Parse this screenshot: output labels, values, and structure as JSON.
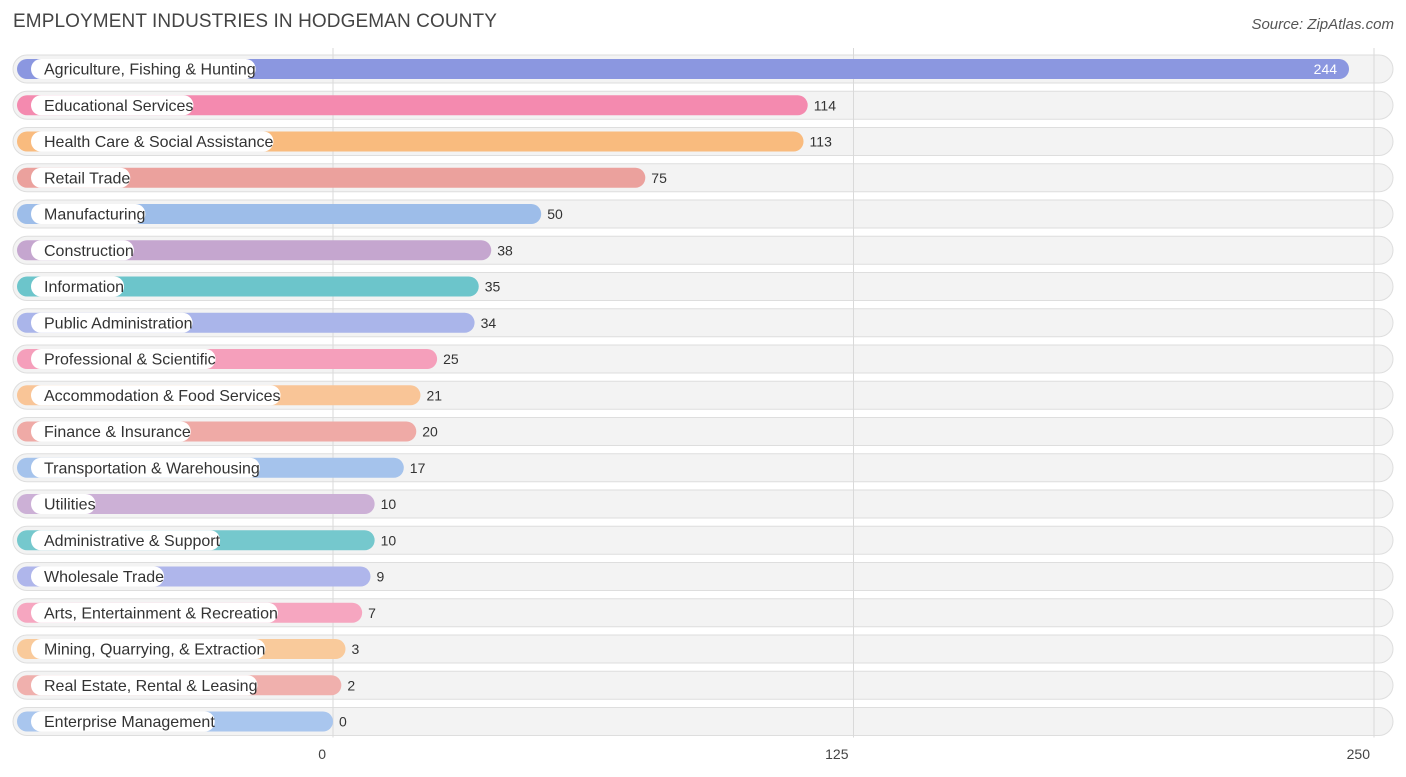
{
  "title": "EMPLOYMENT INDUSTRIES IN HODGEMAN COUNTY",
  "source": "Source: ZipAtlas.com",
  "chart_data": {
    "type": "bar",
    "orientation": "horizontal",
    "title": "EMPLOYMENT INDUSTRIES IN HODGEMAN COUNTY",
    "categories": [
      "Agriculture, Fishing & Hunting",
      "Educational Services",
      "Health Care & Social Assistance",
      "Retail Trade",
      "Manufacturing",
      "Construction",
      "Information",
      "Public Administration",
      "Professional & Scientific",
      "Accommodation & Food Services",
      "Finance & Insurance",
      "Transportation & Warehousing",
      "Utilities",
      "Administrative & Support",
      "Wholesale Trade",
      "Arts, Entertainment & Recreation",
      "Mining, Quarrying, & Extraction",
      "Real Estate, Rental & Leasing",
      "Enterprise Management"
    ],
    "values": [
      244,
      114,
      113,
      75,
      50,
      38,
      35,
      34,
      25,
      21,
      20,
      17,
      10,
      10,
      9,
      7,
      3,
      2,
      0
    ],
    "colors": [
      "#8b97e0",
      "#f48aaf",
      "#f9bb7e",
      "#eba19d",
      "#9dbde9",
      "#c5a6cf",
      "#6cc5cb",
      "#aab5ea",
      "#f59fbb",
      "#f9c597",
      "#efaaa6",
      "#a5c3ec",
      "#ccb0d6",
      "#75c8cd",
      "#afb6eb",
      "#f6a6c0",
      "#f9ca9b",
      "#f0b0ad",
      "#a9c6ee"
    ],
    "xlim": [
      0,
      250
    ],
    "xticks": [
      0,
      125,
      250
    ],
    "xlabel": "",
    "ylabel": "",
    "grid": true
  }
}
